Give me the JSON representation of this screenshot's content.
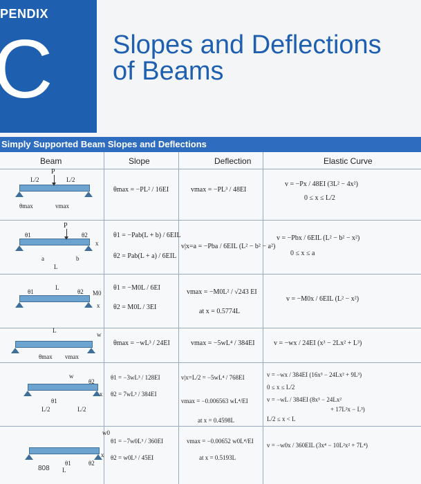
{
  "header": {
    "appendix": "PENDIX",
    "letter": "C",
    "title_line1": "Slopes and Deflections",
    "title_line2": "of Beams"
  },
  "table": {
    "title": "Simply Supported Beam Slopes and Deflections",
    "columns": [
      "Beam",
      "Slope",
      "Deflection",
      "Elastic Curve"
    ],
    "rows": [
      {
        "slope": [
          "θmax = −PL² / 16EI"
        ],
        "deflection": [
          "vmax = −PL³ / 48EI"
        ],
        "curve": [
          "v = −Px / 48EI (3L² − 4x²)",
          "0 ≤ x ≤ L/2"
        ]
      },
      {
        "slope": [
          "θ1 = −Pab(L + b) / 6EIL",
          "θ2 = Pab(L + a) / 6EIL"
        ],
        "deflection": [
          "v|x=a = −Pba / 6EIL (L² − b² − a²)"
        ],
        "curve": [
          "v = −Pbx / 6EIL (L² − b² − x²)",
          "0 ≤ x ≤ a"
        ]
      },
      {
        "slope": [
          "θ1 = −M0L / 6EI",
          "θ2 = M0L / 3EI"
        ],
        "deflection": [
          "vmax = −M0L² / √243 EI",
          "at x = 0.5774L"
        ],
        "curve": [
          "v = −M0x / 6EIL (L² − x²)"
        ]
      },
      {
        "slope": [
          "θmax = −wL³ / 24EI"
        ],
        "deflection": [
          "vmax = −5wL⁴ / 384EI"
        ],
        "curve": [
          "v = −wx / 24EI (x³ − 2Lx² + L³)"
        ]
      },
      {
        "slope": [
          "θ1 = −3wL³ / 128EI",
          "θ2 = 7wL³ / 384EI"
        ],
        "deflection": [
          "v|x=L/2 = −5wL⁴ / 768EI",
          "vmax = −0.006563 wL⁴/EI",
          "at x = 0.4598L"
        ],
        "curve": [
          "v = −wx / 384EI (16x³ − 24Lx² + 9L³)",
          "0 ≤ x ≤ L/2",
          "v = −wL / 384EI (8x³ − 24Lx²",
          "+ 17L²x − L³)",
          "L/2 ≤ x < L"
        ]
      },
      {
        "slope": [
          "θ1 = −7w0L³ / 360EI",
          "θ2 = w0L³ / 45EI"
        ],
        "deflection": [
          "vmax = −0.00652 w0L⁴/EI",
          "at x = 0.5193L"
        ],
        "curve": [
          "v = −w0x / 360EIL (3x⁴ − 10L²x² + 7L⁴)"
        ]
      }
    ],
    "beam_labels": {
      "r1": [
        "P",
        "L/2",
        "L/2",
        "θmax",
        "vmax"
      ],
      "r2": [
        "P",
        "θ1",
        "θ2",
        "x",
        "a",
        "b",
        "L"
      ],
      "r3": [
        "L",
        "θ1",
        "θ2",
        "M0",
        "x"
      ],
      "r4": [
        "L",
        "w",
        "θmax",
        "vmax"
      ],
      "r5": [
        "w",
        "θ1",
        "θ2",
        "x",
        "L/2",
        "L/2"
      ],
      "r6": [
        "w0",
        "θ1",
        "θ2",
        "x",
        "L"
      ]
    }
  },
  "page_number": "808",
  "colors": {
    "blue": "#1f5fb0",
    "header_blue": "#2e6cbf",
    "beam_blue": "#6da3cf"
  }
}
